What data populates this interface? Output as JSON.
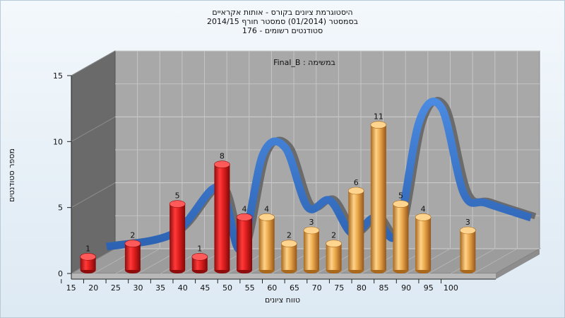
{
  "title_lines": [
    "היסטוגרמת ציונים בקורס - אותות אקראיים",
    "בסמסטר  (01/2014)  סמסטר חורף  2014/15",
    "סטודנטים רשומים - 176"
  ],
  "chart_data": {
    "type": "bar",
    "subtitle": "במשימה : Final_B",
    "xlabel": "טווח ציונים",
    "ylabel": "מספר סטודנטים",
    "xticks": [
      15,
      20,
      25,
      30,
      35,
      40,
      45,
      50,
      55,
      60,
      65,
      70,
      75,
      80,
      85,
      90,
      95,
      100
    ],
    "yticks": [
      0,
      5,
      10,
      15
    ],
    "ylim": [
      0,
      15
    ],
    "grid": true,
    "bars": [
      {
        "x": 15,
        "value": 1,
        "color": "red"
      },
      {
        "x": 25,
        "value": 2,
        "color": "red"
      },
      {
        "x": 35,
        "value": 5,
        "color": "red"
      },
      {
        "x": 40,
        "value": 1,
        "color": "red"
      },
      {
        "x": 45,
        "value": 8,
        "color": "red"
      },
      {
        "x": 50,
        "value": 4,
        "color": "red"
      },
      {
        "x": 55,
        "value": 4,
        "color": "orange"
      },
      {
        "x": 60,
        "value": 2,
        "color": "orange"
      },
      {
        "x": 65,
        "value": 3,
        "color": "orange"
      },
      {
        "x": 70,
        "value": 2,
        "color": "orange"
      },
      {
        "x": 75,
        "value": 6,
        "color": "orange"
      },
      {
        "x": 80,
        "value": 11,
        "color": "orange"
      },
      {
        "x": 85,
        "value": 5,
        "color": "orange"
      },
      {
        "x": 90,
        "value": 4,
        "color": "orange"
      },
      {
        "x": 100,
        "value": 3,
        "color": "orange"
      }
    ],
    "ribbon": [
      {
        "x": 15,
        "y": 1
      },
      {
        "x": 30,
        "y": 2
      },
      {
        "x": 40,
        "y": 5.5
      },
      {
        "x": 45,
        "y": 0.8
      },
      {
        "x": 50,
        "y": 8
      },
      {
        "x": 55,
        "y": 8.5
      },
      {
        "x": 60,
        "y": 4
      },
      {
        "x": 65,
        "y": 4.5
      },
      {
        "x": 70,
        "y": 2
      },
      {
        "x": 75,
        "y": 3.2
      },
      {
        "x": 80,
        "y": 2
      },
      {
        "x": 85,
        "y": 10.5
      },
      {
        "x": 90,
        "y": 11.5
      },
      {
        "x": 95,
        "y": 5
      },
      {
        "x": 100,
        "y": 4.3
      },
      {
        "x": 110,
        "y": 3.2
      }
    ],
    "colors": {
      "red": "#dd1c1c",
      "red_dark": "#8e0c0c",
      "orange": "#e8a84a",
      "orange_dark": "#a9681c",
      "ribbon": "#3a78cc",
      "ribbon_back": "#6b6b6b",
      "back_wall": "#a8a8a8",
      "left_wall": "#6a6a6a",
      "floor": "#9c9c9c"
    }
  }
}
